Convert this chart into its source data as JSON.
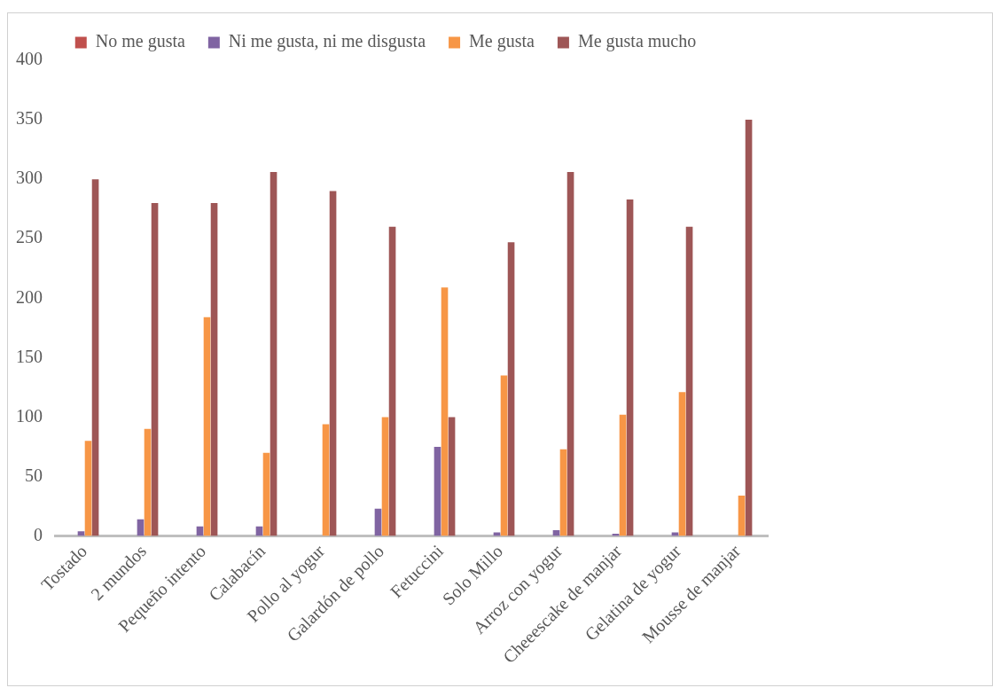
{
  "chart_data": {
    "type": "bar",
    "categories": [
      "Tostado",
      "2 mundos",
      "Pequeño intento",
      "Calabacín",
      "Pollo al yogur",
      "Galardón de pollo",
      "Fetuccini",
      "Solo Millo",
      "Arroz con yogur",
      "Cheeescake de manjar",
      "Gelatina de yogur",
      "Mousse de manjar"
    ],
    "series": [
      {
        "name": "No me gusta",
        "color": "#c0504d",
        "values": [
          0,
          0,
          0,
          0,
          0,
          0,
          0,
          0,
          0,
          0,
          0,
          0
        ]
      },
      {
        "name": "Ni me gusta, ni me disgusta",
        "color": "#8064a2",
        "values": [
          4,
          14,
          8,
          8,
          0,
          23,
          75,
          3,
          5,
          2,
          3,
          0
        ]
      },
      {
        "name": "Me gusta",
        "color": "#f79646",
        "values": [
          80,
          90,
          184,
          70,
          94,
          100,
          209,
          135,
          73,
          102,
          121,
          34
        ]
      },
      {
        "name": "Me gusta mucho",
        "color": "#9e5656",
        "values": [
          300,
          280,
          280,
          306,
          290,
          260,
          100,
          247,
          306,
          283,
          260,
          350
        ]
      }
    ],
    "ylim": [
      0,
      400
    ],
    "yticks": [
      0,
      50,
      100,
      150,
      200,
      250,
      300,
      350,
      400
    ],
    "grid": false,
    "legend": "top"
  }
}
